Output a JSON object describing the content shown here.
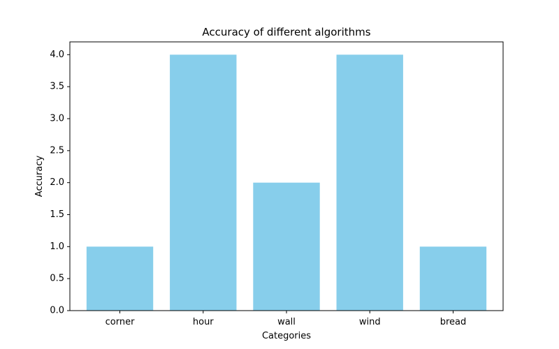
{
  "chart_data": {
    "type": "bar",
    "title": "Accuracy of different algorithms",
    "xlabel": "Categories",
    "ylabel": "Accuracy",
    "categories": [
      "corner",
      "hour",
      "wall",
      "wind",
      "bread"
    ],
    "values": [
      1,
      4,
      2,
      4,
      1
    ],
    "ylim": [
      0,
      4.2
    ],
    "yticks": [
      0.0,
      0.5,
      1.0,
      1.5,
      2.0,
      2.5,
      3.0,
      3.5,
      4.0
    ],
    "ytick_labels": [
      "0.0",
      "0.5",
      "1.0",
      "1.5",
      "2.0",
      "2.5",
      "3.0",
      "3.5",
      "4.0"
    ],
    "grid": false,
    "legend": "none",
    "bar_color": "#87CEEB",
    "axis_color": "#000000"
  }
}
